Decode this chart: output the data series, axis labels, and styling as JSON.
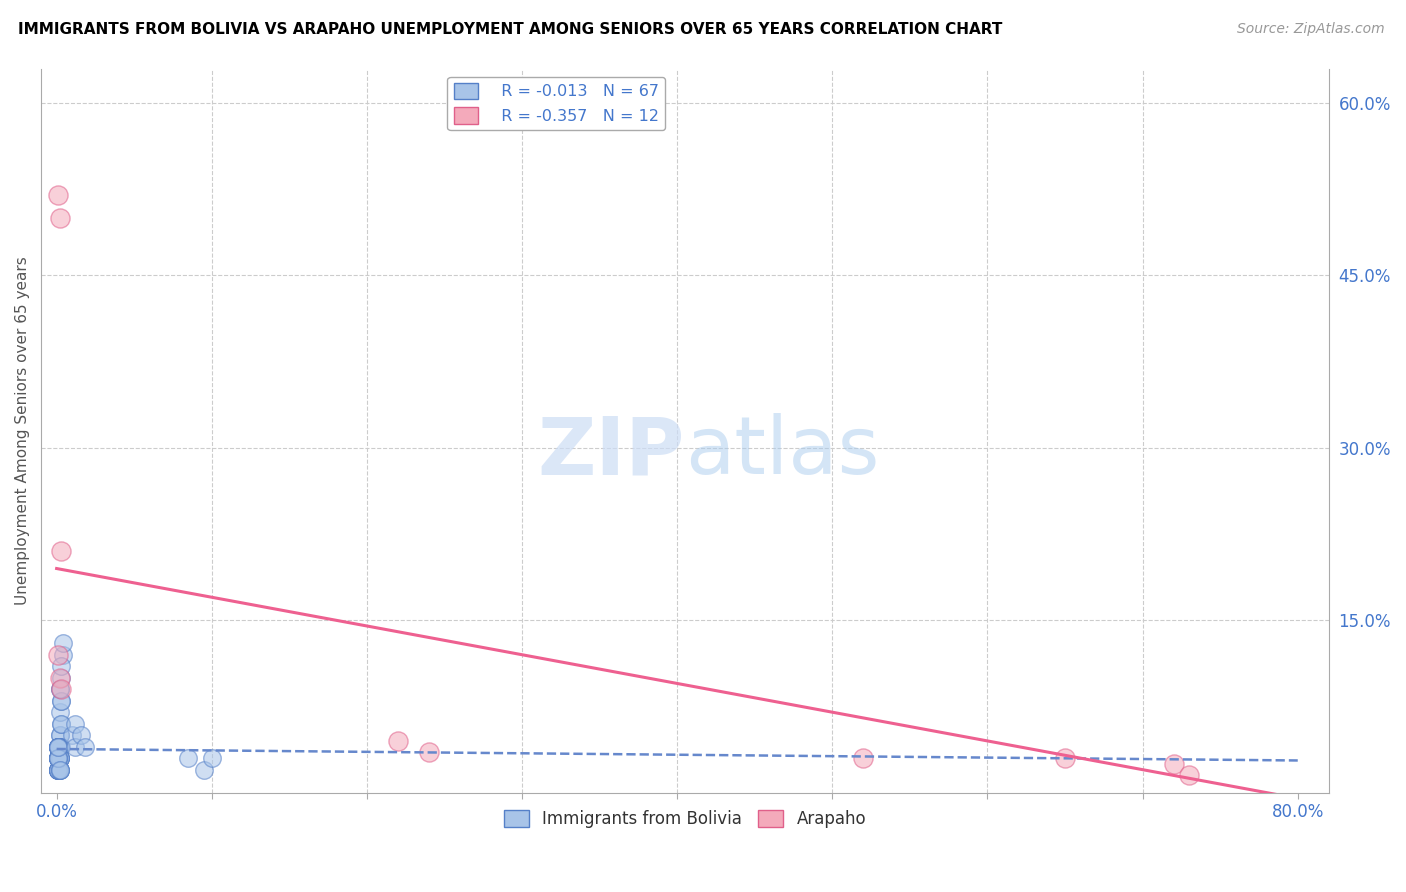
{
  "title": "IMMIGRANTS FROM BOLIVIA VS ARAPAHO UNEMPLOYMENT AMONG SENIORS OVER 65 YEARS CORRELATION CHART",
  "source": "Source: ZipAtlas.com",
  "ylabel": "Unemployment Among Seniors over 65 years",
  "legend_labels": [
    "Immigrants from Bolivia",
    "Arapaho"
  ],
  "blue_R": -0.013,
  "blue_N": 67,
  "pink_R": -0.357,
  "pink_N": 12,
  "blue_color": "#A8C4E8",
  "pink_color": "#F4AABB",
  "blue_edge": "#5580C8",
  "pink_edge": "#E0608A",
  "trend_blue_color": "#6688CC",
  "trend_pink_color": "#EE6090",
  "xlim": [
    -0.01,
    0.82
  ],
  "ylim": [
    0.0,
    0.63
  ],
  "right_yticks": [
    0.0,
    0.15,
    0.3,
    0.45,
    0.6
  ],
  "right_yticklabels": [
    "",
    "15.0%",
    "30.0%",
    "45.0%",
    "60.0%"
  ],
  "grid_color": "#CCCCCC",
  "spine_color": "#AAAAAA",
  "tick_color": "#4477CC",
  "blue_x": [
    0.001,
    0.002,
    0.001,
    0.003,
    0.001,
    0.001,
    0.002,
    0.001,
    0.001,
    0.002,
    0.001,
    0.001,
    0.002,
    0.001,
    0.001,
    0.002,
    0.001,
    0.002,
    0.001,
    0.001,
    0.002,
    0.001,
    0.001,
    0.002,
    0.001,
    0.001,
    0.002,
    0.001,
    0.002,
    0.001,
    0.001,
    0.002,
    0.001,
    0.001,
    0.002,
    0.001,
    0.001,
    0.002,
    0.001,
    0.001,
    0.002,
    0.001,
    0.001,
    0.002,
    0.001,
    0.001,
    0.002,
    0.001,
    0.003,
    0.002,
    0.003,
    0.002,
    0.003,
    0.004,
    0.003,
    0.004,
    0.003,
    0.002,
    0.003,
    0.01,
    0.012,
    0.012,
    0.016,
    0.018,
    0.085,
    0.095,
    0.1
  ],
  "blue_y": [
    0.04,
    0.05,
    0.03,
    0.04,
    0.02,
    0.03,
    0.04,
    0.03,
    0.02,
    0.04,
    0.03,
    0.02,
    0.04,
    0.03,
    0.02,
    0.03,
    0.04,
    0.05,
    0.03,
    0.04,
    0.02,
    0.03,
    0.04,
    0.03,
    0.02,
    0.04,
    0.03,
    0.02,
    0.04,
    0.03,
    0.02,
    0.04,
    0.03,
    0.02,
    0.03,
    0.04,
    0.02,
    0.03,
    0.04,
    0.03,
    0.02,
    0.04,
    0.03,
    0.02,
    0.04,
    0.03,
    0.02,
    0.04,
    0.06,
    0.07,
    0.08,
    0.09,
    0.1,
    0.12,
    0.11,
    0.13,
    0.08,
    0.09,
    0.06,
    0.05,
    0.04,
    0.06,
    0.05,
    0.04,
    0.03,
    0.02,
    0.03
  ],
  "pink_x": [
    0.001,
    0.002,
    0.003,
    0.001,
    0.002,
    0.003,
    0.22,
    0.24,
    0.52,
    0.65,
    0.72,
    0.73
  ],
  "pink_y": [
    0.52,
    0.5,
    0.21,
    0.12,
    0.1,
    0.09,
    0.045,
    0.035,
    0.03,
    0.03,
    0.025,
    0.015
  ],
  "pink_trend_x0": 0.0,
  "pink_trend_y0": 0.195,
  "pink_trend_x1": 0.8,
  "pink_trend_y1": -0.005,
  "blue_trend_x0": 0.0,
  "blue_trend_y0": 0.038,
  "blue_trend_x1": 0.8,
  "blue_trend_y1": 0.028
}
